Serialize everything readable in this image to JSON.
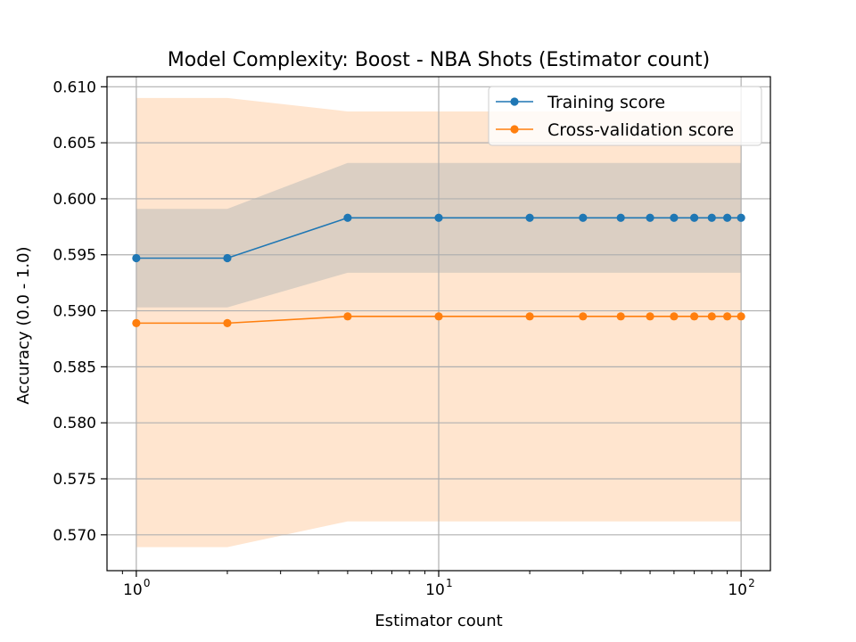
{
  "chart_data": {
    "type": "line",
    "title": "Model Complexity: Boost - NBA Shots (Estimator count)",
    "xlabel": "Estimator count",
    "ylabel": "Accuracy (0.0 - 1.0)",
    "x_scale": "log",
    "xlim": [
      0.8,
      125
    ],
    "ylim": [
      0.5668,
      0.6109
    ],
    "x": [
      1,
      2,
      5,
      10,
      20,
      30,
      40,
      50,
      60,
      70,
      80,
      90,
      100
    ],
    "x_ticks": [
      {
        "value": 1,
        "base": "10",
        "exp": "0"
      },
      {
        "value": 10,
        "base": "10",
        "exp": "1"
      },
      {
        "value": 100,
        "base": "10",
        "exp": "2"
      }
    ],
    "y_ticks": [
      {
        "value": 0.57,
        "label": "0.570"
      },
      {
        "value": 0.575,
        "label": "0.575"
      },
      {
        "value": 0.58,
        "label": "0.580"
      },
      {
        "value": 0.585,
        "label": "0.585"
      },
      {
        "value": 0.59,
        "label": "0.590"
      },
      {
        "value": 0.595,
        "label": "0.595"
      },
      {
        "value": 0.6,
        "label": "0.600"
      },
      {
        "value": 0.605,
        "label": "0.605"
      },
      {
        "value": 0.61,
        "label": "0.610"
      }
    ],
    "grid": true,
    "legend_position": "top-right",
    "series": [
      {
        "name": "Training score",
        "color": "#1f77b4",
        "band_color": "#1f77b4",
        "values": [
          0.5947,
          0.5947,
          0.5983,
          0.5983,
          0.5983,
          0.5983,
          0.5983,
          0.5983,
          0.5983,
          0.5983,
          0.5983,
          0.5983,
          0.5983
        ],
        "band_lower": [
          0.5903,
          0.5903,
          0.5934,
          0.5934,
          0.5934,
          0.5934,
          0.5934,
          0.5934,
          0.5934,
          0.5934,
          0.5934,
          0.5934,
          0.5934
        ],
        "band_upper": [
          0.5991,
          0.5991,
          0.6032,
          0.6032,
          0.6032,
          0.6032,
          0.6032,
          0.6032,
          0.6032,
          0.6032,
          0.6032,
          0.6032,
          0.6032
        ]
      },
      {
        "name": "Cross-validation score",
        "color": "#ff7f0e",
        "band_color": "#ff7f0e",
        "values": [
          0.5889,
          0.5889,
          0.5895,
          0.5895,
          0.5895,
          0.5895,
          0.5895,
          0.5895,
          0.5895,
          0.5895,
          0.5895,
          0.5895,
          0.5895
        ],
        "band_lower": [
          0.5689,
          0.5689,
          0.5712,
          0.5712,
          0.5712,
          0.5712,
          0.5712,
          0.5712,
          0.5712,
          0.5712,
          0.5712,
          0.5712,
          0.5712
        ],
        "band_upper": [
          0.609,
          0.609,
          0.6078,
          0.6078,
          0.6078,
          0.6078,
          0.6078,
          0.6078,
          0.6078,
          0.6078,
          0.6078,
          0.6078,
          0.6078
        ]
      }
    ]
  }
}
